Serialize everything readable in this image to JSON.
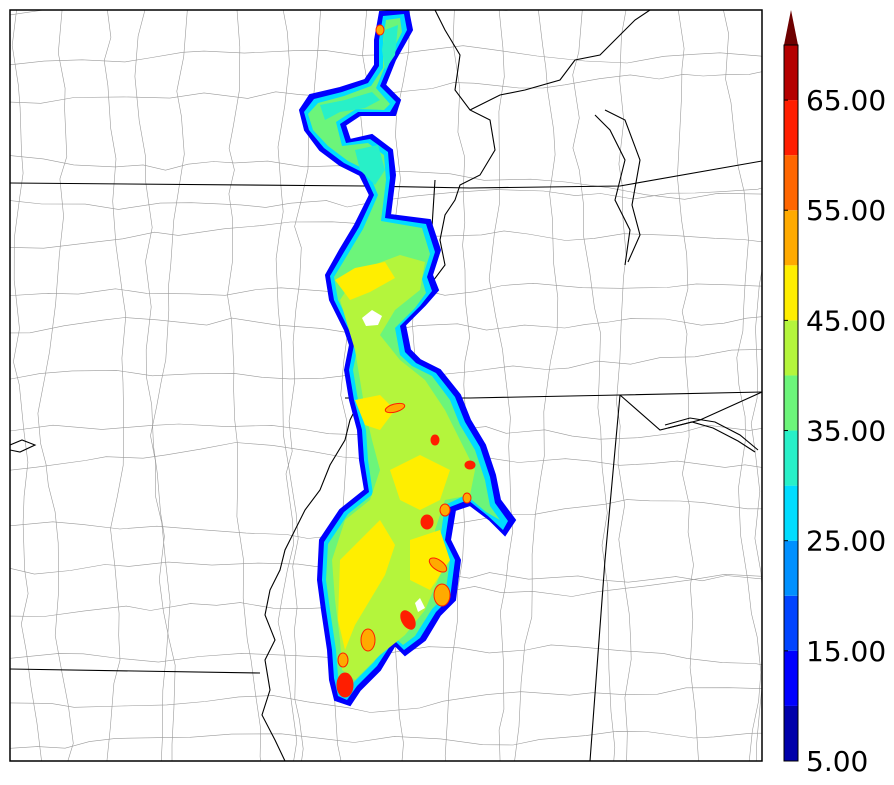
{
  "colorbar": {
    "tick_labels": [
      "5.00",
      "15.00",
      "25.00",
      "35.00",
      "45.00",
      "55.00",
      "65.00"
    ],
    "tick_values": [
      5,
      15,
      25,
      35,
      45,
      55,
      65
    ],
    "range": [
      5,
      70
    ],
    "extend": "max",
    "bins": [
      {
        "from": 5,
        "to": 10,
        "color": "#0000aa"
      },
      {
        "from": 10,
        "to": 15,
        "color": "#0000ff"
      },
      {
        "from": 15,
        "to": 20,
        "color": "#0044ff"
      },
      {
        "from": 20,
        "to": 25,
        "color": "#0090ff"
      },
      {
        "from": 25,
        "to": 30,
        "color": "#00dcff"
      },
      {
        "from": 30,
        "to": 35,
        "color": "#28f0c8"
      },
      {
        "from": 35,
        "to": 40,
        "color": "#6cf57a"
      },
      {
        "from": 40,
        "to": 45,
        "color": "#b4f53c"
      },
      {
        "from": 45,
        "to": 50,
        "color": "#ffee00"
      },
      {
        "from": 50,
        "to": 55,
        "color": "#ffaa00"
      },
      {
        "from": 55,
        "to": 60,
        "color": "#ff6600"
      },
      {
        "from": 60,
        "to": 65,
        "color": "#ff1e00"
      },
      {
        "from": 65,
        "to": 70,
        "color": "#b40000"
      }
    ],
    "extension_color": "#6e0000"
  },
  "map": {
    "border_color": "#000000",
    "county_line_color": "#9a9a9a",
    "state_line_color": "#000000",
    "field_palette": {
      "edge": "#0000ff",
      "outer": "#00dcff",
      "low": "#28f0c8",
      "mid": "#6cf57a",
      "mid_high": "#b4f53c",
      "high": "#ffee00",
      "higher": "#ffaa00",
      "peak": "#ff1e00",
      "core": "#b40000"
    }
  }
}
